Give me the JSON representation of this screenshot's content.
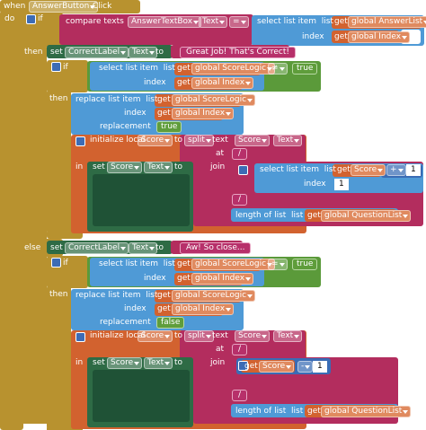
{
  "event": {
    "when": "when",
    "component": "AnswerButton",
    "event": ".Click",
    "do": "do"
  },
  "if": {
    "if": "if",
    "then": "then",
    "else": "else"
  },
  "condition": {
    "compare": "compare texts",
    "component": "AnswerTextBox",
    "property": "Text",
    "operator": "=",
    "select": "select list item  list",
    "get_list": "get",
    "list": "global AnswerList",
    "index": "index",
    "get_index": "get",
    "index_var": "global Index"
  },
  "branches": [
    {
      "set": "set",
      "label": "CorrectLabel",
      "property": "Text",
      "to": "to",
      "message": "Great Job! That's Correct!",
      "if": "if",
      "select": "select list item  list",
      "get_list": "get",
      "list": "global ScoreLogic",
      "operator": "≠",
      "bool": "true",
      "index": "index",
      "get_index": "get",
      "index_var": "global Index",
      "then": "then",
      "replace": "replace list item  list",
      "replace_get_list": "get",
      "replace_list": "global ScoreLogic",
      "replace_index": "index",
      "replace_get_index": "get",
      "replace_index_var": "global Index",
      "replacement": "replacement",
      "replacement_value": "true",
      "init": "initialize local",
      "local": "Score",
      "init_to": "to",
      "split": "split",
      "split_text": "text",
      "split_component": "Score",
      "split_property": "Text",
      "at": "at",
      "separator": "/",
      "in": "in",
      "set_score": "set",
      "score_component": "Score",
      "score_property": "Text",
      "set_to": "to",
      "join": "join",
      "join_item": {
        "select": "select list item  list",
        "get": "get",
        "var": "Score",
        "operator": "+",
        "number": 1,
        "index": "index",
        "index_number": 1
      },
      "join_separator": "/",
      "length": "length of list  list",
      "length_get": "get",
      "length_list": "global QuestionList"
    },
    {
      "set": "set",
      "label": "CorrectLabel",
      "property": "Text",
      "to": "to",
      "message": "Aw! So close...",
      "if": "if",
      "select": "select list item  list",
      "get_list": "get",
      "list": "global ScoreLogic",
      "operator": "=",
      "bool": "true",
      "index": "index",
      "get_index": "get",
      "index_var": "global Index",
      "then": "then",
      "replace": "replace list item  list",
      "replace_get_list": "get",
      "replace_list": "global ScoreLogic",
      "replace_index": "index",
      "replace_get_index": "get",
      "replace_index_var": "global Index",
      "replacement": "replacement",
      "replacement_value": "false",
      "init": "initialize local",
      "local": "Score",
      "init_to": "to",
      "split": "split",
      "split_text": "text",
      "split_component": "Score",
      "split_property": "Text",
      "at": "at",
      "separator": "/",
      "in": "in",
      "set_score": "set",
      "score_component": "Score",
      "score_property": "Text",
      "set_to": "to",
      "join": "join",
      "join_item": {
        "get": "get",
        "var": "Score",
        "operator": "-",
        "number": 1
      },
      "join_separator": "/",
      "length": "length of list  list",
      "length_get": "get",
      "length_list": "global QuestionList"
    }
  ]
}
